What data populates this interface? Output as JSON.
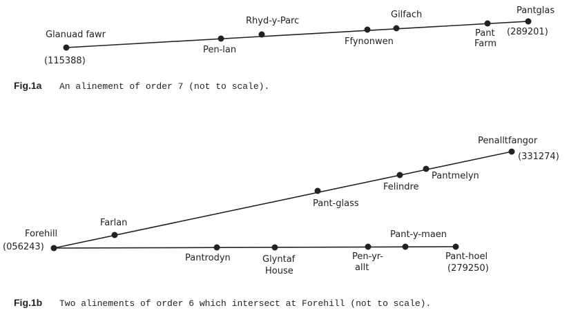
{
  "fig_1a": {
    "nodes": [
      {
        "label": [
          "Glanuad fawr"
        ],
        "ref": "(115388)"
      },
      {
        "label": [
          "Pen-lan"
        ]
      },
      {
        "label": [
          "Rhyd-y-Parc"
        ]
      },
      {
        "label": [
          "Ffynonwen"
        ]
      },
      {
        "label": [
          "Gilfach"
        ]
      },
      {
        "label": [
          "Pant",
          "Farm"
        ]
      },
      {
        "label": [
          "Pantglas"
        ],
        "ref": "(289201)"
      }
    ],
    "caption": {
      "label": "Fig.1a",
      "text": "An alinement of order 7 (not to scale)."
    }
  },
  "fig_1b": {
    "nodes": [
      {
        "label": [
          "Forehill"
        ],
        "ref": "(056243)"
      },
      {
        "label": [
          "Farlan"
        ]
      },
      {
        "label": [
          "Pant-glass"
        ]
      },
      {
        "label": [
          "Felindre"
        ]
      },
      {
        "label": [
          "Pantmelyn"
        ]
      },
      {
        "label": [
          "Penalltfangor"
        ],
        "ref": "(331274)"
      },
      {
        "label": [
          "Pantrodyn"
        ]
      },
      {
        "label": [
          "Glyntaf",
          "House"
        ]
      },
      {
        "label": [
          "Pen-yr-",
          "allt"
        ]
      },
      {
        "label": [
          "Pant-y-maen"
        ]
      },
      {
        "label": [
          "Pant-hoel"
        ],
        "ref": "(279250)"
      }
    ],
    "caption": {
      "label": "Fig.1b",
      "text": "Two alinements of order 6 which intersect at Forehill (not to scale)."
    }
  }
}
